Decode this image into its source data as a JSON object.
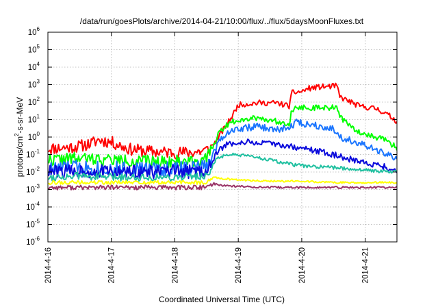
{
  "chart_data": {
    "type": "line",
    "title": "/data/run/goesPlots/archive/2014-04-21/10:00/flux/../flux/5daysMoonFluxes.txt",
    "xlabel": "Coordinated Universal Time (UTC)",
    "ylabel": {
      "main": "protons/cm",
      "sup": "2",
      "rest": "-s-sr-MeV"
    },
    "y_scale": "log",
    "ylim": [
      1e-06,
      1000000.0
    ],
    "xlim": [
      "2014-04-16T00:00",
      "2014-04-21T12:00"
    ],
    "grid": true,
    "legend": "none",
    "x_ticks": [
      {
        "x": 0,
        "label": "2014-4-16"
      },
      {
        "x": 1,
        "label": "2014-4-17"
      },
      {
        "x": 2,
        "label": "2014-4-18"
      },
      {
        "x": 3,
        "label": "2014-4-19"
      },
      {
        "x": 4,
        "label": "2014-4-20"
      },
      {
        "x": 5,
        "label": "2014-4-21"
      }
    ],
    "y_ticks": [
      {
        "exp": -6,
        "label": "10",
        "sup": "-6"
      },
      {
        "exp": -5,
        "label": "10",
        "sup": "-5"
      },
      {
        "exp": -4,
        "label": "10",
        "sup": "-4"
      },
      {
        "exp": -3,
        "label": "10",
        "sup": "-3"
      },
      {
        "exp": -2,
        "label": "10",
        "sup": "-2"
      },
      {
        "exp": -1,
        "label": "10",
        "sup": "-1"
      },
      {
        "exp": 0,
        "label": "10",
        "sup": "0"
      },
      {
        "exp": 1,
        "label": "10",
        "sup": "1"
      },
      {
        "exp": 2,
        "label": "10",
        "sup": "2"
      },
      {
        "exp": 3,
        "label": "10",
        "sup": "3"
      },
      {
        "exp": 4,
        "label": "10",
        "sup": "4"
      },
      {
        "exp": 5,
        "label": "10",
        "sup": "5"
      },
      {
        "exp": 6,
        "label": "10",
        "sup": "6"
      }
    ],
    "series": [
      {
        "color": "#ff0000",
        "noise": 0.16,
        "seed": 11,
        "x": [
          0,
          0.3,
          0.5,
          0.7,
          0.8,
          1.0,
          1.3,
          1.6,
          2.0,
          2.2,
          2.4,
          2.55,
          2.65,
          2.8,
          2.9,
          3.0,
          3.3,
          3.6,
          3.8,
          3.85,
          4.0,
          4.1,
          4.3,
          4.5,
          4.55,
          4.6,
          4.9,
          5.2,
          5.4,
          5.5
        ],
        "y": [
          0.22,
          0.25,
          0.3,
          0.45,
          0.7,
          0.5,
          0.2,
          0.15,
          0.13,
          0.13,
          0.15,
          0.2,
          0.6,
          4,
          15,
          70,
          90,
          90,
          60,
          350,
          400,
          600,
          750,
          800,
          900,
          200,
          60,
          40,
          15,
          8
        ]
      },
      {
        "color": "#00ff00",
        "noise": 0.16,
        "seed": 22,
        "x": [
          0,
          0.5,
          1.0,
          1.5,
          2.0,
          2.5,
          2.6,
          2.7,
          2.85,
          3.0,
          3.3,
          3.6,
          3.8,
          3.85,
          4.0,
          4.3,
          4.5,
          4.55,
          4.6,
          4.8,
          5.0,
          5.3,
          5.5
        ],
        "y": [
          0.05,
          0.06,
          0.05,
          0.04,
          0.04,
          0.05,
          0.3,
          2,
          6,
          10,
          13,
          8,
          6,
          40,
          50,
          45,
          50,
          60,
          15,
          3,
          1.5,
          0.7,
          0.25
        ]
      },
      {
        "color": "#1a75ff",
        "noise": 0.2,
        "seed": 33,
        "x": [
          0,
          0.5,
          1.0,
          1.5,
          2.0,
          2.5,
          2.6,
          2.7,
          2.85,
          3.0,
          3.3,
          3.6,
          3.85,
          3.9,
          4.0,
          4.2,
          4.5,
          4.6,
          4.8,
          5.0,
          5.3,
          5.5
        ],
        "y": [
          0.015,
          0.02,
          0.015,
          0.015,
          0.015,
          0.02,
          0.1,
          0.7,
          2,
          3,
          4,
          2.5,
          4,
          8,
          6,
          5,
          3,
          1,
          0.6,
          0.3,
          0.12,
          0.05
        ]
      },
      {
        "color": "#0a0adc",
        "noise": 0.18,
        "seed": 44,
        "x": [
          0,
          0.5,
          1.0,
          1.5,
          2.0,
          2.5,
          2.6,
          2.7,
          2.85,
          3.0,
          3.2,
          3.5,
          3.7,
          3.9,
          4.1,
          4.3,
          4.6,
          4.9,
          5.2,
          5.5
        ],
        "y": [
          0.01,
          0.012,
          0.01,
          0.01,
          0.01,
          0.012,
          0.05,
          0.2,
          0.4,
          0.5,
          0.5,
          0.4,
          0.35,
          0.25,
          0.2,
          0.15,
          0.08,
          0.04,
          0.025,
          0.012
        ]
      },
      {
        "color": "#20c0a0",
        "noise": 0.1,
        "seed": 55,
        "x": [
          0,
          0.5,
          1.0,
          1.5,
          2.0,
          2.5,
          2.65,
          2.8,
          3.0,
          3.3,
          3.6,
          3.9,
          4.2,
          4.5,
          4.8,
          5.1,
          5.5
        ],
        "y": [
          0.005,
          0.006,
          0.005,
          0.005,
          0.005,
          0.006,
          0.05,
          0.1,
          0.09,
          0.07,
          0.04,
          0.025,
          0.02,
          0.018,
          0.015,
          0.012,
          0.01
        ]
      },
      {
        "color": "#ffff00",
        "noise": 0.05,
        "seed": 66,
        "x": [
          0,
          0.5,
          1.0,
          1.5,
          2.0,
          2.5,
          2.6,
          2.7,
          3.0,
          3.5,
          4.0,
          4.5,
          5.0,
          5.5
        ],
        "y": [
          0.0025,
          0.0025,
          0.0025,
          0.0025,
          0.0025,
          0.0025,
          0.005,
          0.0045,
          0.0035,
          0.003,
          0.003,
          0.0025,
          0.0025,
          0.0025
        ]
      },
      {
        "color": "#993366",
        "noise": 0.06,
        "seed": 77,
        "x": [
          0,
          0.5,
          1.0,
          1.5,
          2.0,
          2.5,
          2.6,
          2.7,
          3.0,
          3.5,
          4.0,
          4.5,
          5.0,
          5.5
        ],
        "y": [
          0.0013,
          0.0013,
          0.0013,
          0.0013,
          0.0013,
          0.0013,
          0.0022,
          0.0018,
          0.0015,
          0.0013,
          0.0013,
          0.0013,
          0.0013,
          0.0013
        ]
      }
    ]
  }
}
